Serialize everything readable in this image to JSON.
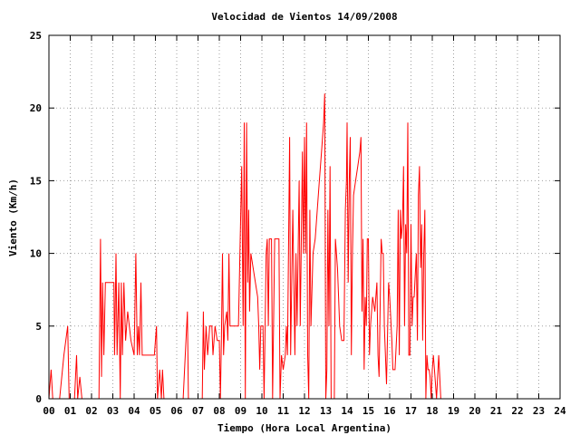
{
  "chart_data": {
    "type": "line",
    "title": "Velocidad de Vientos 14/09/2008",
    "xlabel": "Tiempo (Hora Local Argentina)",
    "ylabel": "Viento (Km/h)",
    "xlim": [
      0,
      24
    ],
    "ylim": [
      0,
      25
    ],
    "x_ticks": [
      "00",
      "01",
      "02",
      "03",
      "04",
      "05",
      "06",
      "07",
      "08",
      "09",
      "10",
      "11",
      "12",
      "13",
      "14",
      "15",
      "16",
      "17",
      "18",
      "19",
      "20",
      "21",
      "22",
      "23",
      "24"
    ],
    "y_ticks": [
      "0",
      "5",
      "10",
      "15",
      "20",
      "25"
    ],
    "grid": true,
    "series": [
      {
        "color": "#ff0000",
        "points": [
          [
            0.0,
            0
          ],
          [
            0.1,
            2
          ],
          [
            0.18,
            0
          ],
          [
            0.3,
            0
          ],
          [
            0.5,
            0
          ],
          [
            0.7,
            3
          ],
          [
            0.88,
            5
          ],
          [
            0.95,
            0
          ],
          [
            1.2,
            0
          ],
          [
            1.3,
            3
          ],
          [
            1.35,
            0
          ],
          [
            1.45,
            1.5
          ],
          [
            1.55,
            0
          ],
          [
            2.35,
            0
          ],
          [
            2.42,
            11
          ],
          [
            2.47,
            1.5
          ],
          [
            2.52,
            8
          ],
          [
            2.58,
            3
          ],
          [
            2.65,
            8
          ],
          [
            3.05,
            8
          ],
          [
            3.08,
            3
          ],
          [
            3.15,
            10
          ],
          [
            3.2,
            3
          ],
          [
            3.28,
            8
          ],
          [
            3.35,
            0
          ],
          [
            3.4,
            8
          ],
          [
            3.45,
            3
          ],
          [
            3.52,
            8
          ],
          [
            3.6,
            4
          ],
          [
            3.7,
            6
          ],
          [
            3.85,
            4
          ],
          [
            4.0,
            3
          ],
          [
            4.08,
            10
          ],
          [
            4.15,
            3
          ],
          [
            4.2,
            5
          ],
          [
            4.25,
            3
          ],
          [
            4.32,
            8
          ],
          [
            4.38,
            3
          ],
          [
            4.45,
            3
          ],
          [
            4.55,
            3
          ],
          [
            4.65,
            3
          ],
          [
            4.8,
            3
          ],
          [
            4.95,
            3
          ],
          [
            5.05,
            5
          ],
          [
            5.1,
            0
          ],
          [
            5.2,
            2
          ],
          [
            5.28,
            0
          ],
          [
            5.33,
            2
          ],
          [
            5.4,
            0
          ],
          [
            6.0,
            0
          ],
          [
            6.3,
            0
          ],
          [
            6.45,
            4.5
          ],
          [
            6.5,
            6
          ],
          [
            6.55,
            0
          ],
          [
            7.0,
            0
          ],
          [
            7.2,
            0
          ],
          [
            7.25,
            6
          ],
          [
            7.3,
            2
          ],
          [
            7.38,
            5
          ],
          [
            7.45,
            3
          ],
          [
            7.5,
            4
          ],
          [
            7.55,
            5
          ],
          [
            7.65,
            5
          ],
          [
            7.7,
            3
          ],
          [
            7.8,
            5
          ],
          [
            7.9,
            4
          ],
          [
            8.0,
            4
          ],
          [
            8.05,
            0
          ],
          [
            8.1,
            4
          ],
          [
            8.15,
            10
          ],
          [
            8.2,
            3
          ],
          [
            8.25,
            5
          ],
          [
            8.35,
            6
          ],
          [
            8.4,
            4
          ],
          [
            8.45,
            10
          ],
          [
            8.5,
            5
          ],
          [
            8.6,
            5
          ],
          [
            8.75,
            5
          ],
          [
            8.9,
            5
          ],
          [
            9.05,
            16
          ],
          [
            9.12,
            5
          ],
          [
            9.17,
            19
          ],
          [
            9.22,
            0
          ],
          [
            9.28,
            19
          ],
          [
            9.33,
            8
          ],
          [
            9.38,
            13
          ],
          [
            9.42,
            6
          ],
          [
            9.48,
            10
          ],
          [
            9.8,
            7
          ],
          [
            9.85,
            5
          ],
          [
            9.9,
            2
          ],
          [
            9.95,
            5
          ],
          [
            10.05,
            5
          ],
          [
            10.1,
            0
          ],
          [
            10.2,
            10
          ],
          [
            10.25,
            11
          ],
          [
            10.3,
            5
          ],
          [
            10.35,
            11
          ],
          [
            10.45,
            11
          ],
          [
            10.5,
            0
          ],
          [
            10.6,
            11
          ],
          [
            10.7,
            11
          ],
          [
            10.8,
            11
          ],
          [
            10.85,
            0
          ],
          [
            10.92,
            3
          ],
          [
            11.0,
            2
          ],
          [
            11.1,
            3
          ],
          [
            11.15,
            5
          ],
          [
            11.2,
            3
          ],
          [
            11.3,
            18
          ],
          [
            11.35,
            3
          ],
          [
            11.45,
            13
          ],
          [
            11.55,
            3
          ],
          [
            11.6,
            10
          ],
          [
            11.65,
            5
          ],
          [
            11.75,
            15
          ],
          [
            11.8,
            5
          ],
          [
            11.9,
            17
          ],
          [
            11.95,
            10
          ],
          [
            12.0,
            18
          ],
          [
            12.05,
            10
          ],
          [
            12.1,
            19
          ],
          [
            12.15,
            3
          ],
          [
            12.2,
            0
          ],
          [
            12.25,
            13
          ],
          [
            12.3,
            5
          ],
          [
            12.4,
            10
          ],
          [
            12.5,
            11
          ],
          [
            12.6,
            13
          ],
          [
            12.7,
            15
          ],
          [
            12.8,
            17
          ],
          [
            12.9,
            19
          ],
          [
            12.95,
            21
          ],
          [
            13.0,
            0
          ],
          [
            13.05,
            2
          ],
          [
            13.1,
            13
          ],
          [
            13.15,
            5
          ],
          [
            13.2,
            16
          ],
          [
            13.25,
            0
          ],
          [
            13.3,
            0
          ],
          [
            13.4,
            0
          ],
          [
            13.45,
            11
          ],
          [
            13.55,
            9
          ],
          [
            13.65,
            5
          ],
          [
            13.75,
            4
          ],
          [
            13.85,
            4
          ],
          [
            13.92,
            13
          ],
          [
            13.97,
            15
          ],
          [
            14.0,
            19
          ],
          [
            14.05,
            8
          ],
          [
            14.1,
            15
          ],
          [
            14.15,
            18
          ],
          [
            14.2,
            3
          ],
          [
            14.25,
            10
          ],
          [
            14.3,
            14
          ],
          [
            14.4,
            15
          ],
          [
            14.5,
            16
          ],
          [
            14.6,
            17
          ],
          [
            14.65,
            18
          ],
          [
            14.7,
            6
          ],
          [
            14.75,
            11
          ],
          [
            14.8,
            2
          ],
          [
            14.85,
            7
          ],
          [
            14.9,
            5
          ],
          [
            14.95,
            11
          ],
          [
            15.0,
            11
          ],
          [
            15.05,
            3
          ],
          [
            15.1,
            5
          ],
          [
            15.2,
            7
          ],
          [
            15.3,
            6
          ],
          [
            15.4,
            8
          ],
          [
            15.45,
            3
          ],
          [
            15.5,
            1.5
          ],
          [
            15.6,
            11
          ],
          [
            15.65,
            10
          ],
          [
            15.7,
            10
          ],
          [
            15.75,
            5
          ],
          [
            15.85,
            1
          ],
          [
            15.95,
            8
          ],
          [
            16.0,
            7
          ],
          [
            16.1,
            4
          ],
          [
            16.15,
            2
          ],
          [
            16.25,
            2
          ],
          [
            16.35,
            5
          ],
          [
            16.4,
            13
          ],
          [
            16.45,
            3
          ],
          [
            16.5,
            13
          ],
          [
            16.55,
            11
          ],
          [
            16.6,
            12
          ],
          [
            16.65,
            16
          ],
          [
            16.7,
            5
          ],
          [
            16.75,
            12
          ],
          [
            16.8,
            10
          ],
          [
            16.85,
            19
          ],
          [
            16.9,
            3
          ],
          [
            16.95,
            3
          ],
          [
            17.0,
            12
          ],
          [
            17.05,
            5
          ],
          [
            17.1,
            7
          ],
          [
            17.15,
            7
          ],
          [
            17.25,
            10
          ],
          [
            17.3,
            4
          ],
          [
            17.35,
            14
          ],
          [
            17.4,
            16
          ],
          [
            17.45,
            9
          ],
          [
            17.5,
            12
          ],
          [
            17.55,
            4
          ],
          [
            17.6,
            10
          ],
          [
            17.65,
            13
          ],
          [
            17.7,
            0
          ],
          [
            17.75,
            3
          ],
          [
            17.8,
            2
          ],
          [
            17.85,
            2
          ],
          [
            17.9,
            1.5
          ],
          [
            17.95,
            0
          ],
          [
            18.0,
            2
          ],
          [
            18.05,
            3
          ],
          [
            18.1,
            2
          ],
          [
            18.2,
            0
          ],
          [
            18.3,
            3
          ],
          [
            18.4,
            0
          ],
          [
            18.5,
            0
          ]
        ]
      }
    ]
  }
}
